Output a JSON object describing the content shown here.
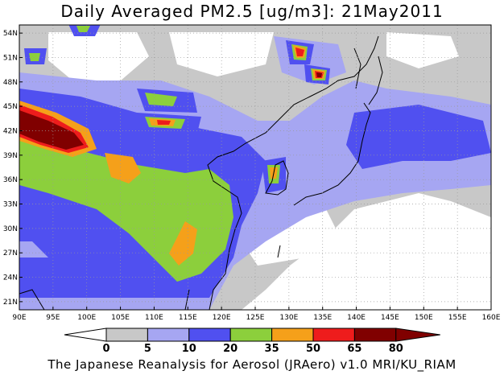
{
  "title": "Daily Averaged PM2.5 [ug/m3]: 21May2011",
  "footer": "The Japanese Reanalysis for Aerosol (JRAero) v1.0 MRI/KU_RIAM",
  "map": {
    "lon_range": [
      90,
      160
    ],
    "lat_range": [
      20,
      55
    ],
    "lon_ticks": [
      "90E",
      "95E",
      "100E",
      "105E",
      "110E",
      "115E",
      "120E",
      "125E",
      "130E",
      "135E",
      "140E",
      "145E",
      "150E",
      "155E",
      "160E"
    ],
    "lat_ticks": [
      "21N",
      "24N",
      "27N",
      "30N",
      "33N",
      "36N",
      "39N",
      "42N",
      "45N",
      "48N",
      "51N",
      "54N"
    ],
    "grid": "dotted"
  },
  "colorbar": {
    "labels": [
      "0",
      "5",
      "10",
      "20",
      "35",
      "50",
      "65",
      "80"
    ],
    "colors": [
      "#ffffff",
      "#c8c8c8",
      "#a6a6f2",
      "#5050f0",
      "#8ccf3c",
      "#f5a01a",
      "#ee1c1c",
      "#800000"
    ]
  }
}
